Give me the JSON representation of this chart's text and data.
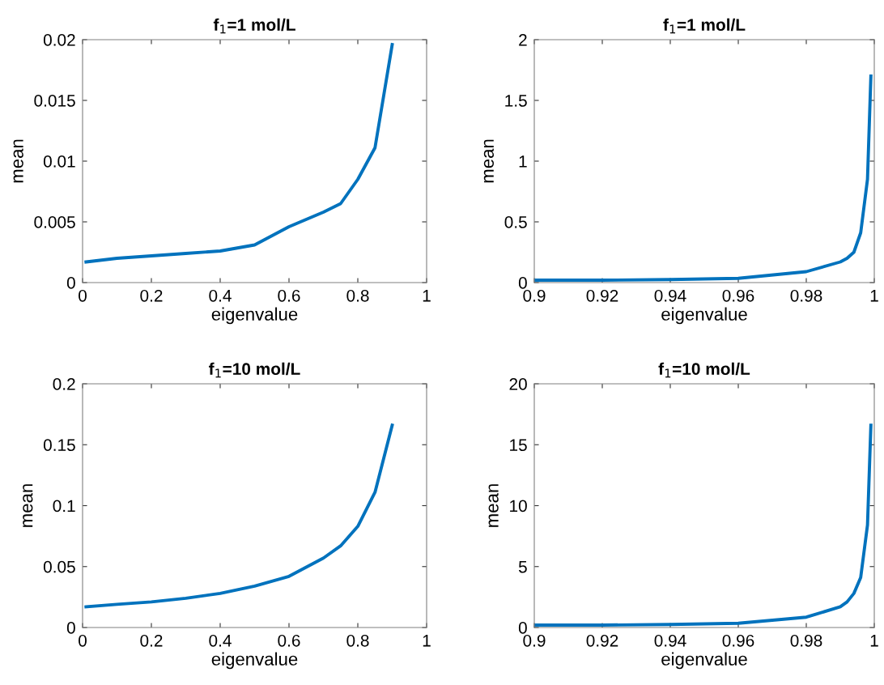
{
  "chart_data": [
    {
      "type": "line",
      "title": "f$_{1}$=1 mol/L",
      "xlabel": "eigenvalue",
      "ylabel": "mean",
      "x": [
        0.01,
        0.1,
        0.2,
        0.3,
        0.4,
        0.5,
        0.6,
        0.7,
        0.75,
        0.8,
        0.85,
        0.9
      ],
      "series": [
        {
          "color": "#0072bd",
          "values": [
            0.0017,
            0.002,
            0.0022,
            0.0024,
            0.0026,
            0.0031,
            0.0046,
            0.0058,
            0.0065,
            0.0085,
            0.0111,
            0.0196
          ]
        }
      ],
      "xlim": [
        0,
        1
      ],
      "xticks": [
        0,
        0.2,
        0.4,
        0.6,
        0.8,
        1
      ],
      "ylim": [
        0,
        0.02
      ],
      "yticks": [
        0,
        0.005,
        0.01,
        0.015,
        0.02
      ],
      "grid": false,
      "legend": false
    },
    {
      "type": "line",
      "title": "f$_{1}$=1 mol/L",
      "xlabel": "eigenvalue",
      "ylabel": "mean",
      "x": [
        0.9,
        0.92,
        0.94,
        0.96,
        0.98,
        0.99,
        0.992,
        0.994,
        0.996,
        0.998,
        0.999
      ],
      "series": [
        {
          "color": "#0072bd",
          "values": [
            0.02,
            0.02,
            0.025,
            0.035,
            0.09,
            0.17,
            0.2,
            0.25,
            0.41,
            0.85,
            1.7
          ]
        }
      ],
      "xlim": [
        0.9,
        1
      ],
      "xticks": [
        0.9,
        0.92,
        0.94,
        0.96,
        0.98,
        1
      ],
      "ylim": [
        0,
        2
      ],
      "yticks": [
        0,
        0.5,
        1,
        1.5,
        2
      ],
      "grid": false,
      "legend": false
    },
    {
      "type": "line",
      "title": "f$_{1}$=10 mol/L",
      "xlabel": "eigenvalue",
      "ylabel": "mean",
      "x": [
        0.01,
        0.1,
        0.2,
        0.3,
        0.4,
        0.5,
        0.6,
        0.7,
        0.75,
        0.8,
        0.85,
        0.9
      ],
      "series": [
        {
          "color": "#0072bd",
          "values": [
            0.017,
            0.019,
            0.021,
            0.024,
            0.028,
            0.034,
            0.042,
            0.057,
            0.067,
            0.083,
            0.111,
            0.166
          ]
        }
      ],
      "xlim": [
        0,
        1
      ],
      "xticks": [
        0,
        0.2,
        0.4,
        0.6,
        0.8,
        1
      ],
      "ylim": [
        0,
        0.2
      ],
      "yticks": [
        0,
        0.05,
        0.1,
        0.15,
        0.2
      ],
      "grid": false,
      "legend": false
    },
    {
      "type": "line",
      "title": "f$_{1}$=10 mol/L",
      "xlabel": "eigenvalue",
      "ylabel": "mean",
      "x": [
        0.9,
        0.92,
        0.94,
        0.96,
        0.98,
        0.99,
        0.992,
        0.994,
        0.996,
        0.998,
        0.999
      ],
      "series": [
        {
          "color": "#0072bd",
          "values": [
            0.2,
            0.2,
            0.25,
            0.35,
            0.85,
            1.7,
            2.1,
            2.8,
            4.1,
            8.4,
            16.6
          ]
        }
      ],
      "xlim": [
        0.9,
        1
      ],
      "xticks": [
        0.9,
        0.92,
        0.94,
        0.96,
        0.98,
        1
      ],
      "ylim": [
        0,
        20
      ],
      "yticks": [
        0,
        5,
        10,
        15,
        20
      ],
      "grid": false,
      "legend": false
    }
  ]
}
